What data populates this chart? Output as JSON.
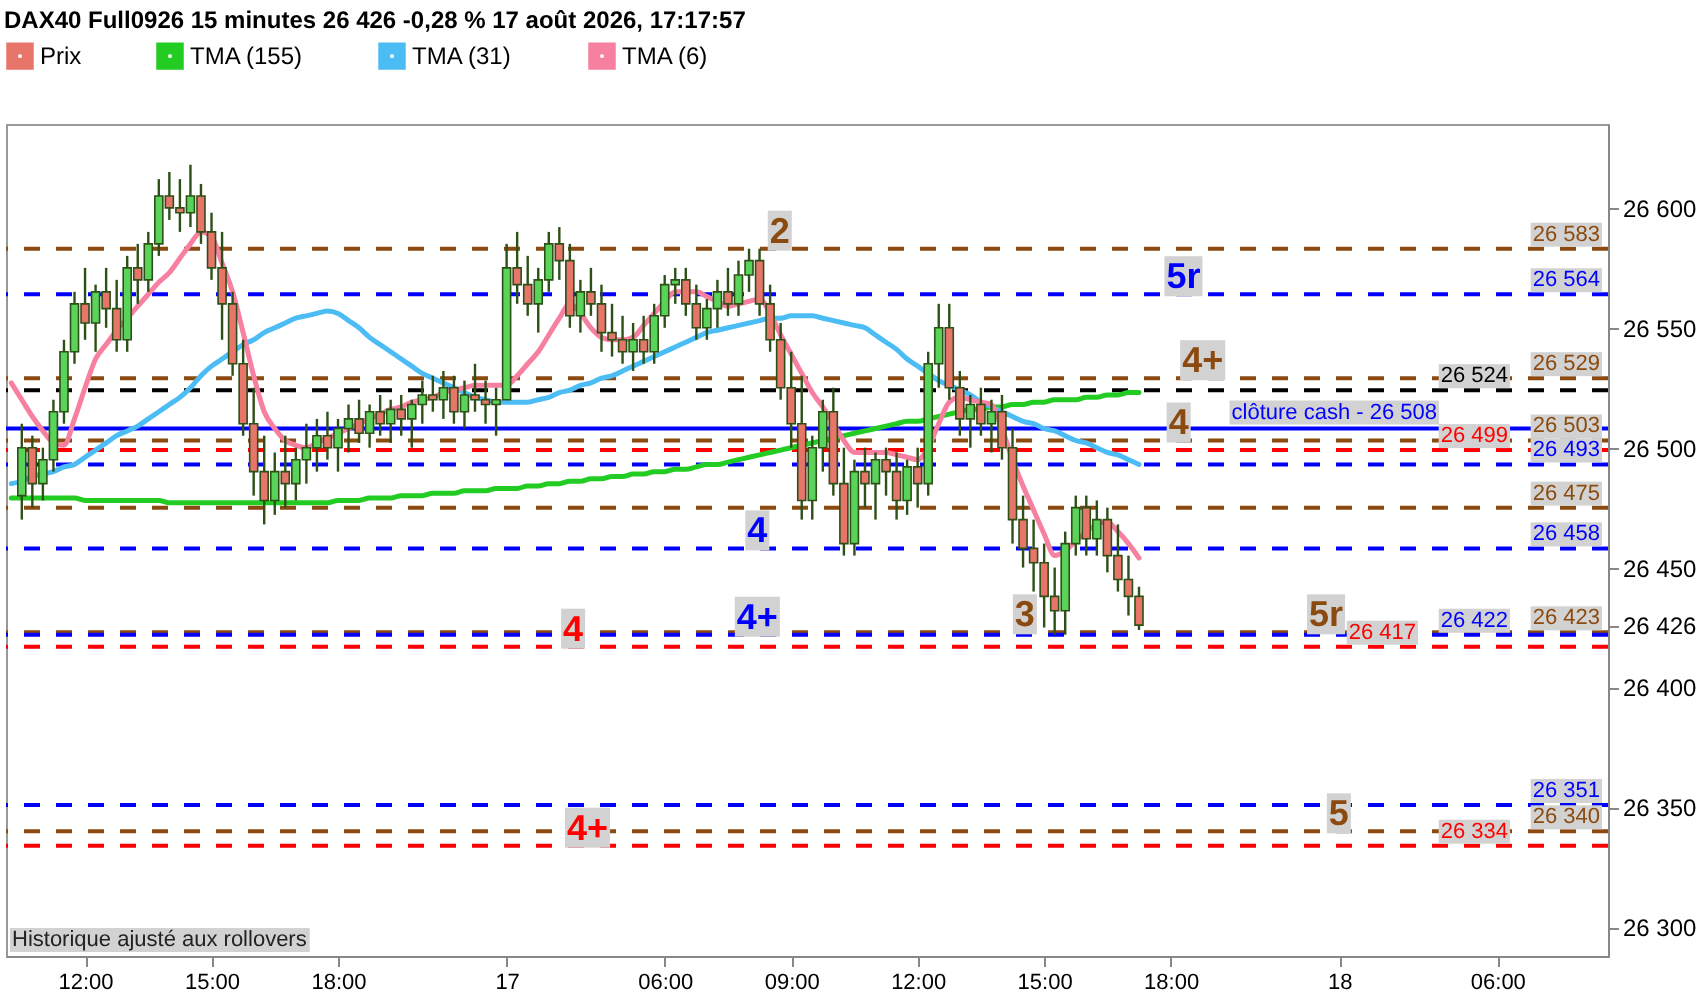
{
  "chart_data": {
    "type": "candlestick",
    "title": "DAX40 Full0926 15 minutes 26 426 -0,28 % 17 août 2026, 17:17:57",
    "legend": "top left",
    "ylim": [
      26288,
      26635
    ],
    "categories": [
      null,
      null,
      null,
      null,
      null,
      null,
      null,
      "12:00",
      null,
      null,
      null,
      null,
      null,
      null,
      null,
      null,
      null,
      null,
      null,
      "15:00",
      null,
      null,
      null,
      null,
      null,
      null,
      null,
      null,
      null,
      null,
      null,
      "18:00",
      null,
      null,
      null,
      null,
      null,
      null,
      null,
      null,
      null,
      null,
      null,
      null,
      null,
      null,
      null,
      "17",
      null,
      null,
      null,
      null,
      null,
      null,
      null,
      null,
      null,
      null,
      null,
      null,
      null,
      null,
      "06:00",
      null,
      null,
      null,
      null,
      null,
      null,
      null,
      null,
      null,
      null,
      null,
      "09:00",
      null,
      null,
      null,
      null,
      null,
      null,
      null,
      null,
      null,
      null,
      null,
      "12:00",
      null,
      null,
      null,
      null,
      null,
      null,
      null,
      null,
      null,
      null,
      null,
      "15:00",
      null,
      null,
      null,
      null,
      null,
      null,
      null,
      null,
      null,
      null,
      null,
      "18:00",
      null,
      null,
      null,
      null,
      null,
      null,
      null,
      null,
      null,
      null,
      null,
      null,
      null,
      null,
      null,
      "18",
      null,
      null,
      null,
      null,
      null,
      null,
      null,
      null,
      null,
      null,
      null,
      null,
      null,
      null,
      "06:00",
      null,
      null,
      null,
      null,
      null,
      null,
      null,
      null,
      null,
      null
    ],
    "yticks": [
      {
        "value": 26300,
        "label": "26 300"
      },
      {
        "value": 26350,
        "label": "26 350"
      },
      {
        "value": 26400,
        "label": "26 400"
      },
      {
        "value": 26426,
        "label": "26 426"
      },
      {
        "value": 26450,
        "label": "26 450"
      },
      {
        "value": 26500,
        "label": "26 500"
      },
      {
        "value": 26550,
        "label": "26 550"
      },
      {
        "value": 26600,
        "label": "26 600"
      }
    ],
    "series": [
      {
        "name": "Prix",
        "color": "#e8756a",
        "ohlc": [
          null,
          [
            26480,
            26510,
            26470,
            26500
          ],
          [
            26500,
            26505,
            26475,
            26485
          ],
          [
            26485,
            26500,
            26478,
            26495
          ],
          [
            26495,
            26520,
            26490,
            26515
          ],
          [
            26515,
            26545,
            26510,
            26540
          ],
          [
            26540,
            26565,
            26535,
            26560
          ],
          [
            26560,
            26575,
            26545,
            26552
          ],
          [
            26552,
            26568,
            26540,
            26565
          ],
          [
            26565,
            26575,
            26550,
            26558
          ],
          [
            26558,
            26570,
            26540,
            26545
          ],
          [
            26545,
            26580,
            26540,
            26575
          ],
          [
            26575,
            26585,
            26560,
            26570
          ],
          [
            26570,
            26590,
            26565,
            26585
          ],
          [
            26585,
            26612,
            26580,
            26605
          ],
          [
            26605,
            26615,
            26595,
            26600
          ],
          [
            26600,
            26612,
            26590,
            26598
          ],
          [
            26598,
            26618,
            26592,
            26605
          ],
          [
            26605,
            26610,
            26585,
            26590
          ],
          [
            26590,
            26598,
            26570,
            26575
          ],
          [
            26575,
            26590,
            26545,
            26560
          ],
          [
            26560,
            26565,
            26530,
            26535
          ],
          [
            26535,
            26545,
            26505,
            26510
          ],
          [
            26510,
            26525,
            26480,
            26490
          ],
          [
            26490,
            26505,
            26468,
            26478
          ],
          [
            26478,
            26498,
            26472,
            26490
          ],
          [
            26490,
            26505,
            26475,
            26485
          ],
          [
            26485,
            26500,
            26478,
            26495
          ],
          [
            26495,
            26510,
            26485,
            26500
          ],
          [
            26500,
            26512,
            26490,
            26505
          ],
          [
            26505,
            26515,
            26495,
            26500
          ],
          [
            26500,
            26512,
            26490,
            26508
          ],
          [
            26508,
            26518,
            26498,
            26512
          ],
          [
            26512,
            26520,
            26502,
            26506
          ],
          [
            26506,
            26518,
            26500,
            26515
          ],
          [
            26515,
            26522,
            26505,
            26510
          ],
          [
            26510,
            26520,
            26502,
            26516
          ],
          [
            26516,
            26522,
            26505,
            26512
          ],
          [
            26512,
            26520,
            26500,
            26518
          ],
          [
            26518,
            26528,
            26510,
            26522
          ],
          [
            26522,
            26530,
            26515,
            26520
          ],
          [
            26520,
            26532,
            26512,
            26525
          ],
          [
            26525,
            26530,
            26510,
            26515
          ],
          [
            26515,
            26528,
            26508,
            26522
          ],
          [
            26522,
            26535,
            26515,
            26520
          ],
          [
            26520,
            26528,
            26510,
            26518
          ],
          [
            26518,
            26525,
            26505,
            26520
          ],
          [
            26520,
            26585,
            26520,
            26575
          ],
          [
            26575,
            26590,
            26560,
            26568
          ],
          [
            26568,
            26580,
            26555,
            26560
          ],
          [
            26560,
            26575,
            26548,
            26570
          ],
          [
            26570,
            26590,
            26565,
            26585
          ],
          [
            26585,
            26592,
            26570,
            26578
          ],
          [
            26578,
            26585,
            26550,
            26555
          ],
          [
            26555,
            26570,
            26548,
            26565
          ],
          [
            26565,
            26575,
            26555,
            26560
          ],
          [
            26560,
            26568,
            26540,
            26548
          ],
          [
            26548,
            26560,
            26538,
            26545
          ],
          [
            26545,
            26555,
            26535,
            26540
          ],
          [
            26540,
            26552,
            26532,
            26545
          ],
          [
            26545,
            26555,
            26535,
            26540
          ],
          [
            26540,
            26560,
            26535,
            26555
          ],
          [
            26555,
            26572,
            26550,
            26568
          ],
          [
            26568,
            26575,
            26560,
            26570
          ],
          [
            26570,
            26575,
            26555,
            26560
          ],
          [
            26560,
            26568,
            26545,
            26550
          ],
          [
            26550,
            26562,
            26545,
            26558
          ],
          [
            26558,
            26570,
            26550,
            26565
          ],
          [
            26565,
            26575,
            26555,
            26560
          ],
          [
            26560,
            26578,
            26555,
            26572
          ],
          [
            26572,
            26583,
            26565,
            26578
          ],
          [
            26578,
            26583,
            26555,
            26560
          ],
          [
            26560,
            26568,
            26540,
            26545
          ],
          [
            26545,
            26552,
            26520,
            26525
          ],
          [
            26525,
            26540,
            26500,
            26510
          ],
          [
            26510,
            26530,
            26470,
            26478
          ],
          [
            26478,
            26505,
            26470,
            26500
          ],
          [
            26500,
            26520,
            26490,
            26515
          ],
          [
            26515,
            26525,
            26480,
            26485
          ],
          [
            26485,
            26500,
            26455,
            26460
          ],
          [
            26460,
            26495,
            26455,
            26490
          ],
          [
            26490,
            26500,
            26475,
            26485
          ],
          [
            26485,
            26498,
            26470,
            26495
          ],
          [
            26495,
            26500,
            26480,
            26490
          ],
          [
            26490,
            26498,
            26470,
            26478
          ],
          [
            26478,
            26495,
            26472,
            26492
          ],
          [
            26492,
            26500,
            26475,
            26485
          ],
          [
            26485,
            26540,
            26480,
            26535
          ],
          [
            26535,
            26560,
            26525,
            26550
          ],
          [
            26550,
            26560,
            26520,
            26525
          ],
          [
            26525,
            26532,
            26505,
            26512
          ],
          [
            26512,
            26522,
            26500,
            26518
          ],
          [
            26518,
            26525,
            26505,
            26510
          ],
          [
            26510,
            26520,
            26498,
            26515
          ],
          [
            26515,
            26522,
            26495,
            26500
          ],
          [
            26500,
            26508,
            26460,
            26470
          ],
          [
            26470,
            26480,
            26450,
            26458
          ],
          [
            26458,
            26470,
            26440,
            26452
          ],
          [
            26452,
            26460,
            26425,
            26438
          ],
          [
            26438,
            26450,
            26422,
            26432
          ],
          [
            26432,
            26465,
            26422,
            26460
          ],
          [
            26460,
            26480,
            26455,
            26475
          ],
          [
            26475,
            26480,
            26455,
            26462
          ],
          [
            26462,
            26478,
            26455,
            26470
          ],
          [
            26470,
            26475,
            26448,
            26455
          ],
          [
            26455,
            26468,
            26440,
            26445
          ],
          [
            26445,
            26455,
            26430,
            26438
          ],
          [
            26438,
            26442,
            26424,
            26426
          ],
          null,
          null,
          null,
          null,
          null,
          null,
          null,
          null,
          null,
          null,
          null,
          null,
          null,
          null,
          null,
          null,
          null,
          null,
          null,
          null,
          null,
          null,
          null,
          null,
          null,
          null,
          null,
          null,
          null,
          null,
          null,
          null,
          null,
          null,
          null,
          null,
          null,
          null,
          null,
          null,
          null,
          null,
          null,
          null
        ],
        "colors": [
          null,
          "#5ad35a",
          "#e8756a",
          "#5ad35a",
          "#5ad35a",
          "#5ad35a",
          "#5ad35a",
          "#e8756a",
          "#5ad35a",
          "#e8756a",
          "#e8756a",
          "#5ad35a",
          "#e8756a",
          "#5ad35a",
          "#5ad35a",
          "#e8756a",
          "#e8756a",
          "#5ad35a",
          "#e8756a",
          "#e8756a",
          "#e8756a",
          "#e8756a",
          "#e8756a",
          "#e8756a",
          "#e8756a",
          "#5ad35a",
          "#e8756a",
          "#5ad35a",
          "#5ad35a",
          "#5ad35a",
          "#e8756a",
          "#5ad35a",
          "#5ad35a",
          "#e8756a",
          "#5ad35a",
          "#e8756a",
          "#5ad35a",
          "#e8756a",
          "#5ad35a",
          "#5ad35a",
          "#e8756a",
          "#5ad35a",
          "#e8756a",
          "#5ad35a",
          "#e8756a",
          "#e8756a",
          "#5ad35a",
          "#5ad35a",
          "#e8756a",
          "#e8756a",
          "#5ad35a",
          "#5ad35a",
          "#e8756a",
          "#e8756a",
          "#5ad35a",
          "#e8756a",
          "#e8756a",
          "#e8756a",
          "#e8756a",
          "#5ad35a",
          "#e8756a",
          "#5ad35a",
          "#5ad35a",
          "#5ad35a",
          "#e8756a",
          "#e8756a",
          "#5ad35a",
          "#5ad35a",
          "#e8756a",
          "#5ad35a",
          "#5ad35a",
          "#e8756a",
          "#e8756a",
          "#e8756a",
          "#e8756a",
          "#e8756a",
          "#5ad35a",
          "#5ad35a",
          "#e8756a",
          "#e8756a",
          "#5ad35a",
          "#e8756a",
          "#5ad35a",
          "#e8756a",
          "#e8756a",
          "#5ad35a",
          "#e8756a",
          "#5ad35a",
          "#5ad35a",
          "#e8756a",
          "#e8756a",
          "#5ad35a",
          "#e8756a",
          "#5ad35a",
          "#e8756a",
          "#e8756a",
          "#e8756a",
          "#e8756a",
          "#e8756a",
          "#e8756a",
          "#5ad35a",
          "#5ad35a",
          "#e8756a",
          "#5ad35a",
          "#e8756a",
          "#e8756a",
          "#e8756a",
          "#e8756a",
          null,
          null,
          null,
          null,
          null,
          null,
          null,
          null,
          null,
          null,
          null,
          null,
          null,
          null,
          null,
          null,
          null,
          null,
          null,
          null,
          null,
          null,
          null,
          null,
          null,
          null,
          null,
          null,
          null,
          null,
          null,
          null,
          null,
          null,
          null,
          null,
          null,
          null,
          null,
          null,
          null,
          null,
          null,
          null
        ]
      },
      {
        "name": "TMA (155)",
        "type": "line",
        "color": "#22cc22",
        "values": [
          26479,
          26479,
          26479,
          26479,
          26479,
          26479,
          26479,
          26478,
          26478,
          26478,
          26478,
          26478,
          26478,
          26478,
          26478,
          26477,
          26477,
          26477,
          26477,
          26477,
          26477,
          26477,
          26477,
          26477,
          26477,
          26477,
          26477,
          26477,
          26477,
          26477,
          26477,
          26478,
          26478,
          26478,
          26479,
          26479,
          26479,
          26480,
          26480,
          26480,
          26481,
          26481,
          26481,
          26482,
          26482,
          26482,
          26483,
          26483,
          26483,
          26484,
          26484,
          26485,
          26485,
          26486,
          26486,
          26487,
          26487,
          26488,
          26488,
          26489,
          26489,
          26490,
          26490,
          26491,
          26491,
          26492,
          26493,
          26493,
          26494,
          26495,
          26496,
          26497,
          26498,
          26499,
          26500,
          26501,
          26502,
          26503,
          26504,
          26505,
          26506,
          26507,
          26508,
          26509,
          26510,
          26511,
          26511,
          26512,
          26513,
          26514,
          26515,
          26516,
          26516,
          26517,
          26517,
          26518,
          26518,
          26519,
          26519,
          26520,
          26520,
          26520,
          26521,
          26521,
          26522,
          26522,
          26523,
          26523,
          null,
          null,
          null,
          null,
          null,
          null,
          null,
          null,
          null,
          null,
          null,
          null,
          null,
          null,
          null,
          null,
          null,
          null,
          null,
          null,
          null,
          null,
          null,
          null,
          null,
          null,
          null,
          null,
          null,
          null,
          null,
          null,
          null,
          null,
          null,
          null,
          null,
          null,
          null,
          null,
          null,
          null,
          null,
          null
        ]
      },
      {
        "name": "TMA (31)",
        "type": "line",
        "color": "#4cbcf4",
        "values": [
          26485,
          26486,
          26488,
          26489,
          26490,
          26492,
          26493,
          26496,
          26499,
          26502,
          26505,
          26507,
          26509,
          26512,
          26515,
          26518,
          26521,
          26525,
          26530,
          26534,
          26537,
          26540,
          26543,
          26545,
          26548,
          26550,
          26552,
          26554,
          26555,
          26556,
          26557,
          26556,
          26553,
          26550,
          26546,
          26543,
          26540,
          26537,
          26534,
          26531,
          26529,
          26527,
          26525,
          26523,
          26521,
          26520,
          26519,
          26519,
          26519,
          26519,
          26520,
          26521,
          26523,
          26524,
          26526,
          26527,
          26529,
          26530,
          26532,
          26534,
          26536,
          26538,
          26540,
          26542,
          26544,
          26546,
          26548,
          26549,
          26550,
          26551,
          26552,
          26553,
          26554,
          26554,
          26555,
          26555,
          26555,
          26554,
          26553,
          26552,
          26551,
          26550,
          26547,
          26544,
          26541,
          26537,
          26534,
          26531,
          26528,
          26526,
          26524,
          26522,
          26519,
          26517,
          26515,
          26513,
          26511,
          26510,
          26508,
          26507,
          26505,
          26503,
          26502,
          26500,
          26498,
          26497,
          26495,
          26493,
          null,
          null,
          null,
          null,
          null,
          null,
          null,
          null,
          null,
          null,
          null,
          null,
          null,
          null,
          null,
          null,
          null,
          null,
          null,
          null,
          null,
          null,
          null,
          null,
          null,
          null,
          null,
          null,
          null,
          null,
          null,
          null,
          null,
          null,
          null,
          null,
          null,
          null,
          null,
          null,
          null,
          null,
          null,
          null
        ]
      },
      {
        "name": "TMA (6)",
        "type": "line",
        "color": "#f77fa0",
        "values": [
          26527,
          26520,
          26513,
          26507,
          26502,
          26501,
          26512,
          26525,
          26537,
          26543,
          26549,
          26554,
          26559,
          26564,
          26569,
          26573,
          26579,
          26585,
          26590,
          26588,
          26577,
          26565,
          26548,
          26530,
          26515,
          26508,
          26503,
          26501,
          26500,
          26502,
          26504,
          26506,
          26508,
          26510,
          26512,
          26514,
          26516,
          26517,
          26519,
          26520,
          26521,
          26523,
          26524,
          26525,
          26526,
          26526,
          26526,
          26526,
          26530,
          26535,
          26540,
          26547,
          26554,
          26560,
          26556,
          26550,
          26546,
          26545,
          26545,
          26546,
          26551,
          26556,
          26561,
          26565,
          26565,
          26565,
          26563,
          26561,
          26559,
          26560,
          26561,
          26562,
          26556,
          26547,
          26539,
          26531,
          26523,
          26517,
          26510,
          26503,
          26498,
          26498,
          26498,
          26498,
          26497,
          26496,
          26495,
          26500,
          26510,
          26519,
          26521,
          26520,
          26519,
          26518,
          26508,
          26495,
          26484,
          26474,
          26464,
          26455,
          26457,
          26461,
          26465,
          26468,
          26469,
          26465,
          26460,
          26454,
          null,
          null,
          null,
          null,
          null,
          null,
          null,
          null,
          null,
          null,
          null,
          null,
          null,
          null,
          null,
          null,
          null,
          null,
          null,
          null,
          null,
          null,
          null,
          null,
          null,
          null,
          null,
          null,
          null,
          null,
          null,
          null,
          null,
          null,
          null,
          null,
          null,
          null,
          null,
          null,
          null,
          null,
          null,
          null
        ]
      }
    ],
    "ref_lines": [
      {
        "axis": "y",
        "value": 26583,
        "label": "26 583",
        "color": "#8b4a0f",
        "line_style": "dashed"
      },
      {
        "axis": "y",
        "value": 26564,
        "label": "26 564",
        "color": "#0000ff",
        "line_style": "dashed"
      },
      {
        "axis": "y",
        "value": 26529,
        "label": "26 529",
        "color": "#8b4a0f",
        "line_style": "dashed"
      },
      {
        "axis": "y",
        "value": 26524,
        "label": "26 524",
        "color": "#000000",
        "line_style": "dashed"
      },
      {
        "axis": "y",
        "value": 26508,
        "label": "clôture cash - 26 508",
        "color": "#0000ff",
        "line_style": "solid"
      },
      {
        "axis": "y",
        "value": 26503,
        "label": "26 503",
        "color": "#8b4a0f",
        "line_style": "dashed"
      },
      {
        "axis": "y",
        "value": 26499,
        "label": "26 499",
        "color": "#ff0000",
        "line_style": "dashed"
      },
      {
        "axis": "y",
        "value": 26493,
        "label": "26 493",
        "color": "#0000ff",
        "line_style": "dashed"
      },
      {
        "axis": "y",
        "value": 26475,
        "label": "26 475",
        "color": "#8b4a0f",
        "line_style": "dashed"
      },
      {
        "axis": "y",
        "value": 26458,
        "label": "26 458",
        "color": "#0000ff",
        "line_style": "dashed"
      },
      {
        "axis": "y",
        "value": 26423,
        "label": "26 423",
        "color": "#8b4a0f",
        "line_style": "dashed"
      },
      {
        "axis": "y",
        "value": 26422,
        "label": "26 422",
        "color": "#0000ff",
        "line_style": "dashed"
      },
      {
        "axis": "y",
        "value": 26417,
        "label": "26 417",
        "color": "#ff0000",
        "line_style": "dashed"
      },
      {
        "axis": "y",
        "value": 26351,
        "label": "26 351",
        "color": "#0000ff",
        "line_style": "dashed"
      },
      {
        "axis": "y",
        "value": 26340,
        "label": "26 340",
        "color": "#8b4a0f",
        "line_style": "dashed"
      },
      {
        "axis": "y",
        "value": 26334,
        "label": "26 334",
        "color": "#ff0000",
        "line_style": "dashed"
      }
    ],
    "annotations": [
      {
        "text": "2",
        "y": 26583
      },
      {
        "text": "5r",
        "y": 26564
      },
      {
        "text": "4+",
        "y": 26529
      },
      {
        "text": "4",
        "y": 26503
      },
      {
        "text": "4",
        "y": 26458
      },
      {
        "text": "4+",
        "y": 26422
      },
      {
        "text": "4",
        "y": 26417
      },
      {
        "text": "3",
        "y": 26423
      },
      {
        "text": "5r",
        "y": 26423
      },
      {
        "text": "5",
        "y": 26340
      },
      {
        "text": "4+",
        "y": 26334
      },
      "Historique ajusté aux rollovers"
    ]
  }
}
